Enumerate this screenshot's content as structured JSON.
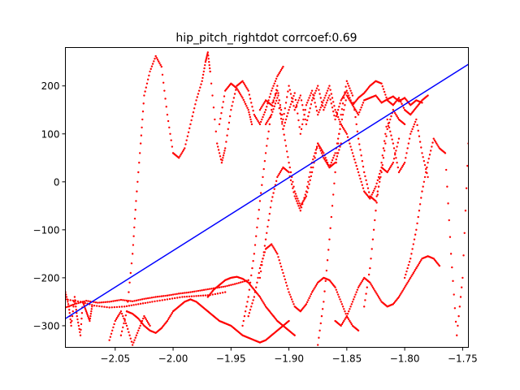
{
  "chart_data": {
    "type": "scatter",
    "title": "hip_pitch_rightdot corrcoef:0.69",
    "xlabel": "",
    "ylabel": "",
    "xlim": [
      -2.093,
      -1.745
    ],
    "ylim": [
      -345,
      280
    ],
    "x_ticks": [
      -2.05,
      -2.0,
      -1.95,
      -1.9,
      -1.85,
      -1.8,
      -1.75
    ],
    "x_tick_labels": [
      "−2.05",
      "−2.00",
      "−1.95",
      "−1.90",
      "−1.85",
      "−1.80",
      "−1.75"
    ],
    "y_ticks": [
      -300,
      -200,
      -100,
      0,
      100,
      200
    ],
    "y_tick_labels": [
      "−300",
      "−200",
      "−100",
      "0",
      "100",
      "200"
    ],
    "grid": false,
    "colors": {
      "points": "#ff0000",
      "fit_line": "#0000ff",
      "axes": "#000000",
      "background": "#ffffff"
    },
    "fit_line": {
      "x": [
        -2.093,
        -1.745
      ],
      "y": [
        -285,
        245
      ]
    },
    "traces": [
      {
        "x": [
          -2.093,
          -2.085,
          -2.075,
          -2.065,
          -2.055,
          -2.045,
          -2.035,
          -2.025,
          -2.015,
          -2.005,
          -1.995,
          -1.985,
          -1.975,
          -1.965,
          -1.955,
          -1.945,
          -1.935
        ],
        "y": [
          -262,
          -255,
          -248,
          -252,
          -250,
          -246,
          -249,
          -244,
          -240,
          -237,
          -233,
          -230,
          -226,
          -222,
          -218,
          -212,
          -205
        ]
      },
      {
        "x": [
          -2.093,
          -2.08,
          -2.068,
          -2.055,
          -2.042,
          -2.03,
          -2.018,
          -2.005,
          -1.992,
          -1.98,
          -1.968,
          -1.955
        ],
        "y": [
          -245,
          -250,
          -258,
          -262,
          -260,
          -255,
          -250,
          -245,
          -240,
          -238,
          -236,
          -230
        ]
      },
      {
        "x": [
          -2.045,
          -2.04,
          -2.035,
          -2.032,
          -2.028,
          -2.025,
          -2.02,
          -2.015,
          -2.01,
          -2.005,
          -2.0
        ],
        "y": [
          -320,
          -270,
          -150,
          -40,
          80,
          180,
          230,
          262,
          240,
          140,
          60
        ]
      },
      {
        "x": [
          -2.0,
          -1.995,
          -1.99,
          -1.985,
          -1.98,
          -1.975,
          -1.972,
          -1.97,
          -1.968
        ],
        "y": [
          60,
          50,
          70,
          120,
          170,
          210,
          250,
          270,
          230
        ]
      },
      {
        "x": [
          -1.968,
          -1.962,
          -1.958,
          -1.955,
          -1.95,
          -1.945,
          -1.94,
          -1.935,
          -1.93,
          -1.925,
          -1.92,
          -1.915,
          -1.91,
          -1.905
        ],
        "y": [
          230,
          80,
          40,
          70,
          150,
          200,
          210,
          190,
          140,
          120,
          150,
          190,
          220,
          240
        ]
      },
      {
        "x": [
          -1.96,
          -1.955,
          -1.95,
          -1.945,
          -1.94,
          -1.935,
          -1.932
        ],
        "y": [
          120,
          190,
          205,
          195,
          175,
          150,
          120
        ]
      },
      {
        "x": [
          -1.925,
          -1.92,
          -1.915,
          -1.91,
          -1.905,
          -1.9,
          -1.895,
          -1.89,
          -1.885,
          -1.88,
          -1.875,
          -1.87,
          -1.865,
          -1.86,
          -1.855,
          -1.85,
          -1.845,
          -1.84,
          -1.835,
          -1.83,
          -1.825,
          -1.82,
          -1.815,
          -1.81,
          -1.805,
          -1.8,
          -1.795,
          -1.79,
          -1.785,
          -1.78
        ],
        "y": [
          150,
          170,
          160,
          190,
          130,
          200,
          150,
          180,
          120,
          170,
          200,
          150,
          180,
          130,
          170,
          190,
          160,
          175,
          185,
          200,
          210,
          205,
          170,
          160,
          175,
          150,
          140,
          155,
          170,
          180
        ]
      },
      {
        "x": [
          -1.92,
          -1.915,
          -1.91,
          -1.905,
          -1.9,
          -1.895,
          -1.89,
          -1.885,
          -1.88,
          -1.875,
          -1.87,
          -1.865,
          -1.86,
          -1.855,
          -1.85,
          -1.845,
          -1.84,
          -1.835,
          -1.83,
          -1.825,
          -1.82,
          -1.815,
          -1.81,
          -1.805,
          -1.8,
          -1.795,
          -1.79,
          -1.785
        ],
        "y": [
          120,
          140,
          175,
          110,
          150,
          185,
          100,
          160,
          190,
          140,
          170,
          200,
          150,
          120,
          180,
          160,
          140,
          170,
          175,
          180,
          165,
          172,
          178,
          168,
          175,
          160,
          170,
          165
        ]
      },
      {
        "x": [
          -1.94,
          -1.935,
          -1.93,
          -1.925,
          -1.92,
          -1.915,
          -1.91,
          -1.905,
          -1.9,
          -1.895,
          -1.89,
          -1.885,
          -1.88,
          -1.875,
          -1.87,
          -1.865,
          -1.86,
          -1.855
        ],
        "y": [
          -300,
          -240,
          -150,
          -40,
          60,
          150,
          200,
          110,
          40,
          -20,
          -50,
          -30,
          20,
          80,
          60,
          30,
          40,
          80
        ]
      },
      {
        "x": [
          -1.925,
          -1.92,
          -1.915,
          -1.91,
          -1.905,
          -1.9,
          -1.895,
          -1.89,
          -1.885,
          -1.88,
          -1.875,
          -1.87,
          -1.865,
          -1.86,
          -1.855,
          -1.85,
          -1.845,
          -1.84,
          -1.835,
          -1.83,
          -1.825,
          -1.82,
          -1.815,
          -1.81,
          -1.805
        ],
        "y": [
          -200,
          -120,
          -40,
          10,
          30,
          20,
          -30,
          -60,
          -20,
          40,
          80,
          50,
          30,
          60,
          120,
          100,
          60,
          20,
          -20,
          -35,
          -10,
          30,
          20,
          40,
          90
        ]
      },
      {
        "x": [
          -1.875,
          -1.87,
          -1.865,
          -1.86,
          -1.855,
          -1.85,
          -1.845,
          -1.84,
          -1.835,
          -1.83,
          -1.825,
          -1.82,
          -1.815,
          -1.81,
          -1.805,
          -1.8
        ],
        "y": [
          -340,
          -250,
          -120,
          20,
          140,
          210,
          180,
          90,
          20,
          -30,
          -40,
          20,
          110,
          150,
          130,
          120
        ]
      },
      {
        "x": [
          -1.835,
          -1.83,
          -1.825,
          -1.82,
          -1.815,
          -1.81,
          -1.805,
          -1.8,
          -1.795,
          -1.79,
          -1.785,
          -1.78
        ],
        "y": [
          -260,
          -180,
          -60,
          40,
          130,
          80,
          20,
          40,
          100,
          130,
          60,
          10
        ]
      },
      {
        "x": [
          -1.8,
          -1.795,
          -1.79,
          -1.785,
          -1.78,
          -1.775,
          -1.77,
          -1.765,
          -1.76,
          -1.755,
          -1.75,
          -1.745
        ],
        "y": [
          -200,
          -160,
          -100,
          -20,
          40,
          90,
          70,
          60,
          -150,
          -320,
          -200,
          80
        ]
      },
      {
        "x": [
          -1.97,
          -1.965,
          -1.96,
          -1.955,
          -1.95,
          -1.945,
          -1.94,
          -1.935,
          -1.93,
          -1.925,
          -1.92,
          -1.915,
          -1.91,
          -1.905,
          -1.9,
          -1.895
        ],
        "y": [
          -240,
          -225,
          -215,
          -205,
          -200,
          -198,
          -202,
          -210,
          -225,
          -240,
          -260,
          -275,
          -290,
          -300,
          -310,
          -320
        ]
      },
      {
        "x": [
          -1.935,
          -1.93,
          -1.925,
          -1.92,
          -1.915,
          -1.91,
          -1.905,
          -1.9,
          -1.895,
          -1.89,
          -1.885,
          -1.88,
          -1.875,
          -1.87,
          -1.865,
          -1.86,
          -1.855,
          -1.85,
          -1.845,
          -1.84
        ],
        "y": [
          -280,
          -240,
          -180,
          -140,
          -130,
          -150,
          -190,
          -230,
          -260,
          -270,
          -255,
          -230,
          -210,
          -200,
          -205,
          -220,
          -250,
          -280,
          -300,
          -310
        ]
      },
      {
        "x": [
          -1.86,
          -1.855,
          -1.85,
          -1.845,
          -1.84,
          -1.835,
          -1.83,
          -1.825,
          -1.82,
          -1.815,
          -1.81,
          -1.805,
          -1.8,
          -1.795,
          -1.79,
          -1.785,
          -1.78,
          -1.775,
          -1.77
        ],
        "y": [
          -290,
          -300,
          -280,
          -250,
          -220,
          -200,
          -210,
          -230,
          -250,
          -260,
          -255,
          -240,
          -220,
          -200,
          -180,
          -160,
          -155,
          -160,
          -175
        ]
      },
      {
        "x": [
          -2.04,
          -2.035,
          -2.03,
          -2.025,
          -2.02,
          -2.015,
          -2.01,
          -2.005,
          -2.0,
          -1.995,
          -1.99,
          -1.985,
          -1.98,
          -1.975,
          -1.97,
          -1.965,
          -1.96,
          -1.955,
          -1.95,
          -1.945,
          -1.94,
          -1.935,
          -1.93,
          -1.925,
          -1.92,
          -1.915,
          -1.91,
          -1.905,
          -1.9
        ],
        "y": [
          -270,
          -275,
          -285,
          -300,
          -310,
          -315,
          -305,
          -290,
          -270,
          -260,
          -250,
          -245,
          -250,
          -260,
          -270,
          -280,
          -290,
          -295,
          -300,
          -310,
          -320,
          -325,
          -330,
          -335,
          -330,
          -320,
          -310,
          -300,
          -290
        ]
      },
      {
        "x": [
          -2.093,
          -2.09,
          -2.088,
          -2.085,
          -2.083,
          -2.08,
          -2.078,
          -2.075,
          -2.072,
          -2.07
        ],
        "y": [
          -230,
          -260,
          -300,
          -240,
          -280,
          -320,
          -250,
          -270,
          -290,
          -260
        ]
      },
      {
        "x": [
          -2.055,
          -2.05,
          -2.045,
          -2.04,
          -2.035,
          -2.03,
          -2.025,
          -2.02
        ],
        "y": [
          -330,
          -290,
          -270,
          -300,
          -340,
          -310,
          -280,
          -300
        ]
      }
    ]
  }
}
